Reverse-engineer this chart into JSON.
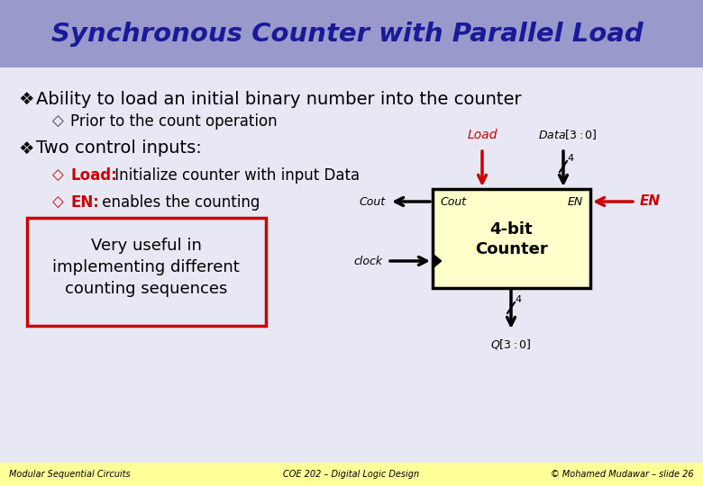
{
  "title": "Synchronous Counter with Parallel Load",
  "title_color": "#1a1a99",
  "title_bg": "#9999cc",
  "slide_bg": "#e8e8f5",
  "footer_bg": "#ffff99",
  "bullet1": "Ability to load an initial binary number into the counter",
  "sub_bullet1": "Prior to the count operation",
  "bullet2": "Two control inputs:",
  "load_label": "Load:",
  "load_desc": " Initialize counter with input Data",
  "en_label": "EN:",
  "en_desc": " enables the counting",
  "box_text1": "Very useful in",
  "box_text2": "implementing different",
  "box_text3": "counting sequences",
  "footer_left": "Modular Sequential Circuits",
  "footer_mid": "COE 202 – Digital Logic Design",
  "footer_right": "© Mohamed Mudawar – slide 26",
  "red_color": "#cc0000",
  "black": "#000000",
  "box_border": "#cc0000",
  "counter_fill": "#ffffcc",
  "counter_border": "#000000",
  "bullet_color": "#333366",
  "diamond_color": "#cc0000"
}
